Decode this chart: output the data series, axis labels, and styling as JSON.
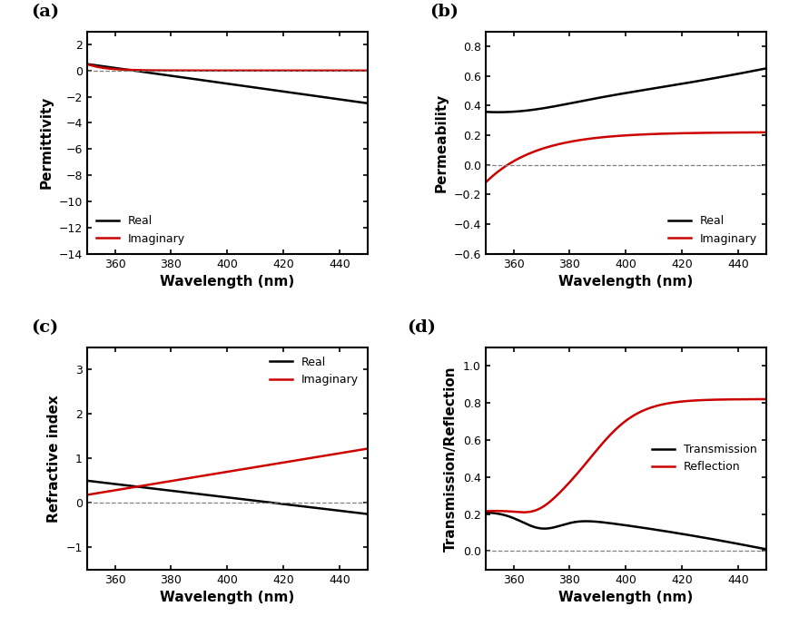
{
  "wavelength_start": 350,
  "wavelength_end": 450,
  "n_points": 300,
  "panel_labels": [
    "(a)",
    "(b)",
    "(c)",
    "(d)"
  ],
  "xlim": [
    350,
    450
  ],
  "xticks": [
    360,
    380,
    400,
    420,
    440
  ],
  "ylim_a": [
    -14,
    3
  ],
  "yticks_a": [
    2,
    0,
    -2,
    -4,
    -6,
    -8,
    -10,
    -12,
    -14
  ],
  "ylabel_a": "Permittivity",
  "ylim_b": [
    -0.6,
    0.9
  ],
  "yticks_b": [
    -0.6,
    -0.4,
    -0.2,
    0.0,
    0.2,
    0.4,
    0.6,
    0.8
  ],
  "ylabel_b": "Permeability",
  "ylim_c": [
    -1.5,
    3.5
  ],
  "yticks_c": [
    -1,
    0,
    1,
    2,
    3
  ],
  "ylabel_c": "Refractive index",
  "ylim_d": [
    -0.1,
    1.1
  ],
  "yticks_d": [
    0.0,
    0.2,
    0.4,
    0.6,
    0.8,
    1.0
  ],
  "ylabel_d": "Transmission/Reflection",
  "xlabel": "Wavelength (nm)",
  "color_real": "#000000",
  "color_imag": "#cc0000",
  "label_real": "Real",
  "label_imaginary": "Imaginary",
  "label_transmission": "Transmission",
  "label_reflection": "Reflection",
  "line_width": 1.8,
  "font_size_label": 11,
  "font_size_tick": 9,
  "font_size_panel": 14
}
